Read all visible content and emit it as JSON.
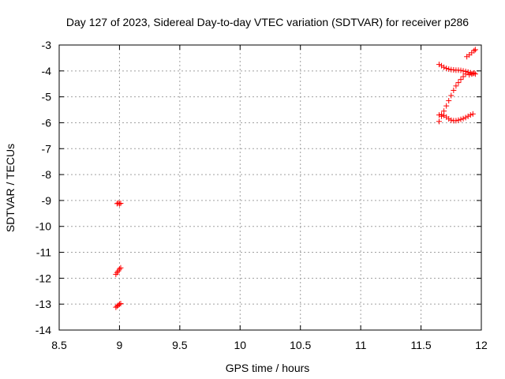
{
  "chart_data": {
    "type": "scatter",
    "title": "Day 127 of 2023, Sidereal Day-to-day VTEC variation (SDTVAR) for receiver p286",
    "xlabel": "GPS time / hours",
    "ylabel": "SDTVAR / TECUs",
    "xlim": [
      8.5,
      12
    ],
    "ylim": [
      -14,
      -3
    ],
    "xticks": [
      "8.5",
      "9",
      "9.5",
      "10",
      "10.5",
      "11",
      "11.5",
      "12"
    ],
    "yticks": [
      "-3",
      "-4",
      "-5",
      "-6",
      "-7",
      "-8",
      "-9",
      "-10",
      "-11",
      "-12",
      "-13",
      "-14"
    ],
    "grid": true,
    "marker_color": "#ff0000",
    "series": [
      {
        "marker": "plus",
        "points": [
          [
            8.98,
            -9.12
          ],
          [
            8.99,
            -9.1
          ],
          [
            9.0,
            -9.13
          ],
          [
            9.01,
            -9.11
          ],
          [
            8.97,
            -11.85
          ],
          [
            8.98,
            -11.78
          ],
          [
            8.99,
            -11.72
          ],
          [
            9.0,
            -11.65
          ],
          [
            9.01,
            -11.6
          ],
          [
            8.97,
            -13.12
          ],
          [
            8.98,
            -13.08
          ],
          [
            8.99,
            -13.04
          ],
          [
            9.0,
            -13.0
          ],
          [
            9.01,
            -12.98
          ],
          [
            11.65,
            -3.75
          ],
          [
            11.67,
            -3.8
          ],
          [
            11.69,
            -3.86
          ],
          [
            11.71,
            -3.9
          ],
          [
            11.73,
            -3.93
          ],
          [
            11.75,
            -3.95
          ],
          [
            11.77,
            -3.96
          ],
          [
            11.79,
            -3.97
          ],
          [
            11.81,
            -3.97
          ],
          [
            11.83,
            -3.98
          ],
          [
            11.85,
            -4.0
          ],
          [
            11.87,
            -4.02
          ],
          [
            11.89,
            -4.05
          ],
          [
            11.91,
            -4.07
          ],
          [
            11.93,
            -4.1
          ],
          [
            11.95,
            -4.12
          ],
          [
            11.65,
            -5.95
          ],
          [
            11.67,
            -5.75
          ],
          [
            11.69,
            -5.55
          ],
          [
            11.71,
            -5.35
          ],
          [
            11.73,
            -5.15
          ],
          [
            11.75,
            -4.95
          ],
          [
            11.77,
            -4.75
          ],
          [
            11.79,
            -4.58
          ],
          [
            11.81,
            -4.45
          ],
          [
            11.83,
            -4.33
          ],
          [
            11.85,
            -4.22
          ],
          [
            11.87,
            -4.12
          ],
          [
            11.89,
            -4.05
          ],
          [
            11.65,
            -5.7
          ],
          [
            11.67,
            -5.68
          ],
          [
            11.69,
            -5.72
          ],
          [
            11.71,
            -5.78
          ],
          [
            11.73,
            -5.85
          ],
          [
            11.75,
            -5.9
          ],
          [
            11.77,
            -5.92
          ],
          [
            11.79,
            -5.92
          ],
          [
            11.81,
            -5.9
          ],
          [
            11.83,
            -5.87
          ],
          [
            11.85,
            -5.84
          ],
          [
            11.87,
            -5.8
          ],
          [
            11.89,
            -5.75
          ],
          [
            11.91,
            -5.7
          ],
          [
            11.93,
            -5.66
          ],
          [
            11.88,
            -3.45
          ],
          [
            11.9,
            -3.38
          ],
          [
            11.92,
            -3.3
          ],
          [
            11.94,
            -3.22
          ],
          [
            11.95,
            -3.18
          ],
          [
            11.9,
            -4.15
          ],
          [
            11.92,
            -4.12
          ],
          [
            11.94,
            -4.08
          ]
        ]
      }
    ]
  }
}
